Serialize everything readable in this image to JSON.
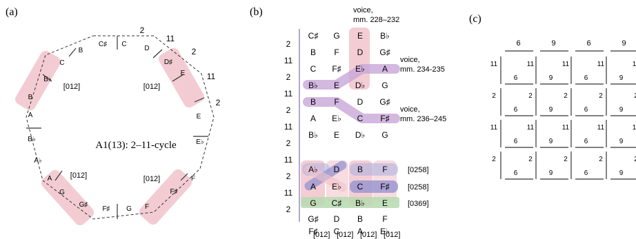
{
  "panel_a": {
    "label": "(a)",
    "title": "A1(13): 2–11-cycle",
    "notes": [
      "C",
      "D",
      "D♯",
      "E",
      "E♭",
      "F",
      "F♯",
      "E",
      "F",
      "F♯",
      "G",
      "G",
      "G♯",
      "A",
      "A♭",
      "B♭",
      "A",
      "B",
      "B♭",
      "C",
      "B",
      "C♯"
    ],
    "edge_labels": [
      "2",
      "11",
      "2",
      "11",
      "2"
    ],
    "trichords": [
      "[012]",
      "[012]",
      "[012]",
      "[012]"
    ]
  },
  "panel_b": {
    "label": "(b)",
    "intervals": [
      "2",
      "11",
      "2",
      "11",
      "2",
      "11",
      "2",
      "11",
      "2",
      "11",
      "2"
    ],
    "rows": [
      [
        "C♯",
        "G",
        "E",
        "B♭"
      ],
      [
        "B",
        "F",
        "D",
        "G♯"
      ],
      [
        "C",
        "F♯",
        "E♭",
        "A"
      ],
      [
        "B♭",
        "E",
        "D♭",
        "G"
      ],
      [
        "B",
        "F",
        "D",
        "G♯"
      ],
      [
        "A",
        "E♭",
        "C",
        "F♯"
      ],
      [
        "B♭",
        "E",
        "D♭",
        "G"
      ],
      [
        "A♭",
        "D",
        "B",
        "F"
      ],
      [
        "A",
        "E♭",
        "C",
        "F♯"
      ],
      [
        "G",
        "C♯",
        "B♭",
        "E"
      ],
      [
        "G♯",
        "D",
        "B",
        "F"
      ],
      [
        "F♯",
        "C",
        "A",
        "E♭"
      ]
    ],
    "voice_labels": [
      {
        "line1": "voice,",
        "line2": "mm. 228–232"
      },
      {
        "line1": "voice,",
        "line2": "mm. 234-235"
      },
      {
        "line1": "voice,",
        "line2": "mm. 236–245"
      }
    ],
    "set_labels": [
      "[0258]",
      "[0258]",
      "[0369]"
    ],
    "column_labels": [
      "[012]",
      "[012]",
      "[012]",
      "[012]"
    ]
  },
  "panel_c": {
    "label": "(c)",
    "top_labels": [
      "6",
      "9",
      "6",
      "9"
    ],
    "rows": [
      {
        "side": "11",
        "cells": [
          {
            "r": "11",
            "b": "6"
          },
          {
            "r": "11",
            "b": "9"
          },
          {
            "r": "11",
            "b": "6"
          },
          {
            "r": "11",
            "b": "9"
          }
        ]
      },
      {
        "side": "2",
        "cells": [
          {
            "r": "2",
            "b": "6"
          },
          {
            "r": "2",
            "b": "9"
          },
          {
            "r": "2",
            "b": "6"
          },
          {
            "r": "2",
            "b": "9"
          }
        ]
      },
      {
        "side": "11",
        "cells": [
          {
            "r": "11",
            "b": "6"
          },
          {
            "r": "11",
            "b": "9"
          },
          {
            "r": "11",
            "b": "6"
          },
          {
            "r": "11",
            "b": "9"
          }
        ]
      },
      {
        "side": "2",
        "cells": [
          {
            "r": "2",
            "b": "6"
          },
          {
            "r": "2",
            "b": "9"
          },
          {
            "r": "2",
            "b": "6"
          },
          {
            "r": "2",
            "b": "9"
          }
        ]
      }
    ]
  },
  "colors": {
    "pink": "#f2c4cc",
    "purple": "#c8a6d8",
    "blue": "#aeb2e0",
    "green": "#b7d9b0",
    "axis": "#7a6fb0"
  }
}
